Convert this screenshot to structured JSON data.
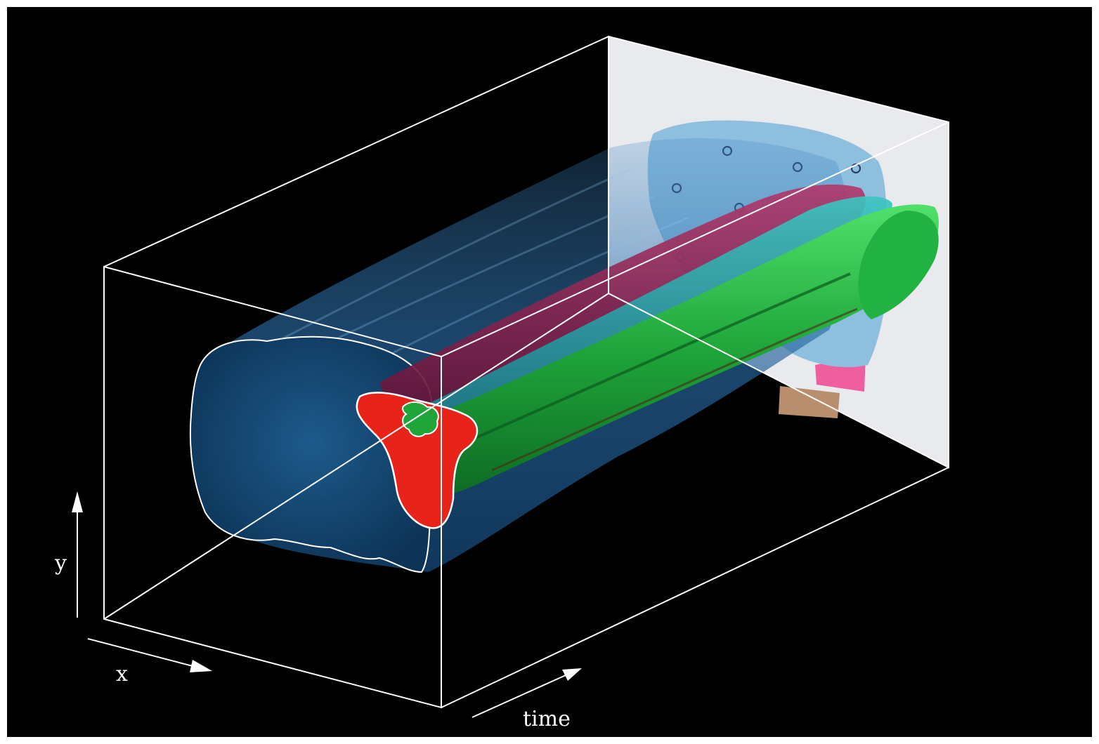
{
  "figure": {
    "background_color": "#000000",
    "frame_color": "#ffffff",
    "axes": {
      "x_label": "x",
      "y_label": "y",
      "time_label": "time"
    },
    "volumes": [
      {
        "name": "blue",
        "color": "#1f6fae"
      },
      {
        "name": "red",
        "color": "#e8231a"
      },
      {
        "name": "green",
        "color": "#1fa53a"
      },
      {
        "name": "magenta",
        "color": "#8a1f4f"
      }
    ],
    "back_plane": {
      "panel_color": "#e9eaee",
      "paper_color": "#8fbfdf",
      "pink_color": "#ef5fa0",
      "tan_color": "#b88e6e"
    }
  }
}
